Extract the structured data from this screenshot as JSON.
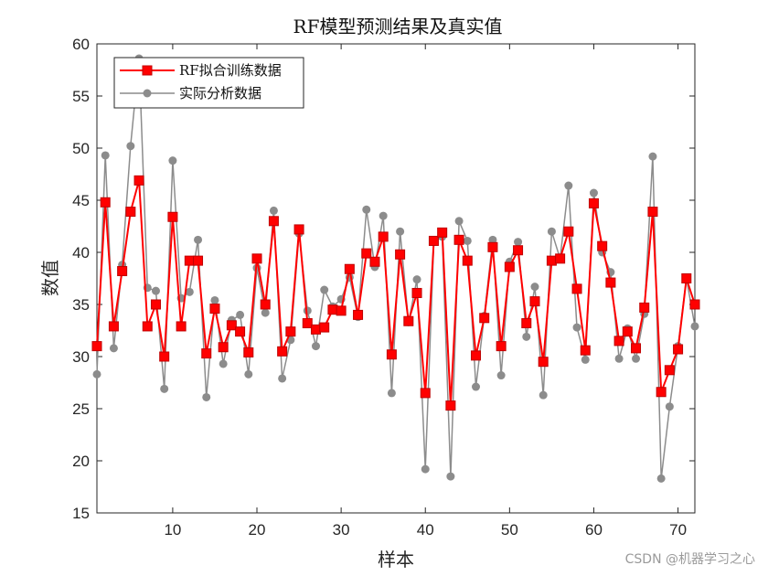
{
  "watermark": "CSDN @机器学习之心",
  "colors": {
    "train": "#ff0000",
    "actual": "#8c8c8c",
    "axis": "#262626"
  },
  "chart_data": {
    "type": "line",
    "title": "RF模型预测结果及真实值",
    "xlabel": "样本",
    "ylabel": "数值",
    "xlim": [
      1,
      72
    ],
    "ylim": [
      15,
      60
    ],
    "xticks": [
      10,
      20,
      30,
      40,
      50,
      60,
      70
    ],
    "yticks": [
      15,
      20,
      25,
      30,
      35,
      40,
      45,
      50,
      55,
      60
    ],
    "legend_position": "top-left",
    "grid": false,
    "x": [
      1,
      2,
      3,
      4,
      5,
      6,
      7,
      8,
      9,
      10,
      11,
      12,
      13,
      14,
      15,
      16,
      17,
      18,
      19,
      20,
      21,
      22,
      23,
      24,
      25,
      26,
      27,
      28,
      29,
      30,
      31,
      32,
      33,
      34,
      35,
      36,
      37,
      38,
      39,
      40,
      41,
      42,
      43,
      44,
      45,
      46,
      47,
      48,
      49,
      50,
      51,
      52,
      53,
      54,
      55,
      56,
      57,
      58,
      59,
      60,
      61,
      62,
      63,
      64,
      65,
      66,
      67,
      68,
      69,
      70,
      71,
      72
    ],
    "series": [
      {
        "name": "RF拟合训练数据",
        "marker": "square",
        "values": [
          31.0,
          44.8,
          32.9,
          38.2,
          43.9,
          46.9,
          32.9,
          35.0,
          30.0,
          43.4,
          32.9,
          39.2,
          39.2,
          30.3,
          34.6,
          30.9,
          33.0,
          32.4,
          30.4,
          39.4,
          35.0,
          43.0,
          30.5,
          32.4,
          42.2,
          33.2,
          32.6,
          32.8,
          34.5,
          34.4,
          38.4,
          34.0,
          39.9,
          39.1,
          41.5,
          30.2,
          39.8,
          33.4,
          36.1,
          26.5,
          41.1,
          41.9,
          25.3,
          41.2,
          39.2,
          30.1,
          33.7,
          40.5,
          31.0,
          38.6,
          40.2,
          33.2,
          35.3,
          29.5,
          39.2,
          39.4,
          42.0,
          36.5,
          30.6,
          44.7,
          40.6,
          37.1,
          31.5,
          32.4,
          30.8,
          34.7,
          43.9,
          26.6,
          28.7,
          30.7,
          37.5,
          35.0
        ]
      },
      {
        "name": "实际分析数据",
        "marker": "circle",
        "values": [
          28.3,
          49.3,
          30.8,
          38.8,
          50.2,
          58.6,
          36.6,
          36.3,
          26.9,
          48.8,
          35.6,
          36.2,
          41.2,
          26.1,
          35.4,
          29.3,
          33.5,
          34.0,
          28.3,
          38.5,
          34.2,
          44.0,
          27.9,
          31.6,
          41.8,
          34.4,
          31.0,
          36.4,
          34.8,
          35.5,
          37.6,
          33.8,
          44.1,
          38.6,
          43.5,
          26.5,
          42.0,
          33.3,
          37.4,
          19.2,
          41.0,
          41.5,
          18.5,
          43.0,
          41.1,
          27.1,
          33.9,
          41.2,
          28.2,
          39.1,
          41.0,
          31.9,
          36.7,
          26.3,
          42.0,
          39.4,
          46.4,
          32.8,
          29.7,
          45.7,
          40.0,
          38.1,
          29.8,
          32.7,
          29.8,
          34.1,
          49.2,
          18.3,
          25.2,
          31.0,
          37.5,
          32.9
        ]
      }
    ]
  }
}
